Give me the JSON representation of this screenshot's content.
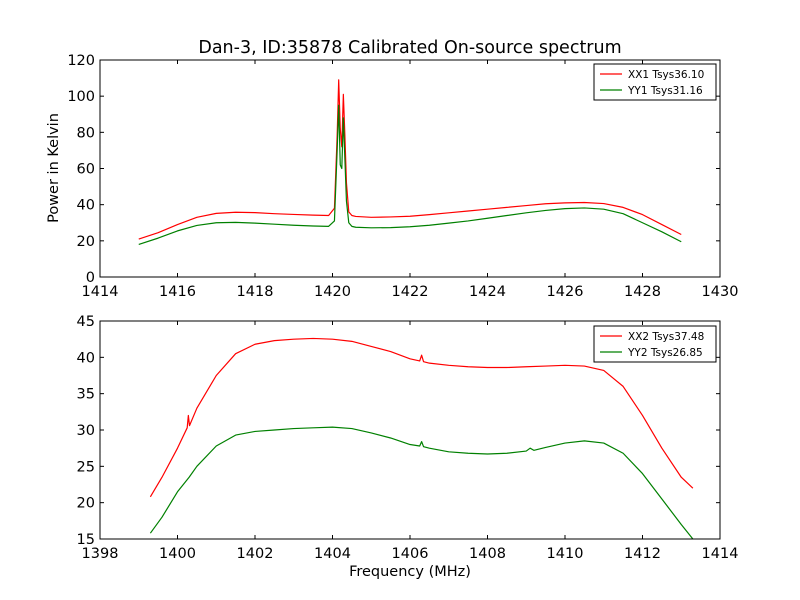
{
  "title": "Dan-3, ID:35878 Calibrated On-source spectrum",
  "colors": {
    "red": "#ff0000",
    "green": "#008000",
    "axis": "#000000",
    "background": "#ffffff"
  },
  "chart_data": [
    {
      "type": "line",
      "title": "Dan-3, ID:35878 Calibrated On-source spectrum",
      "xlabel": "",
      "ylabel": "Power in Kelvin",
      "xlim": [
        1414,
        1430
      ],
      "ylim": [
        0,
        120
      ],
      "xticks": [
        1414,
        1416,
        1418,
        1420,
        1422,
        1424,
        1426,
        1428,
        1430
      ],
      "yticks": [
        0,
        20,
        40,
        60,
        80,
        100,
        120
      ],
      "grid": false,
      "legend_position": "top-right",
      "series": [
        {
          "name": "XX1 Tsys36.10",
          "color": "#ff0000",
          "x": [
            1415.0,
            1415.5,
            1416.0,
            1416.5,
            1417.0,
            1417.5,
            1418.0,
            1418.5,
            1419.0,
            1419.5,
            1419.9,
            1420.05,
            1420.12,
            1420.16,
            1420.2,
            1420.24,
            1420.28,
            1420.32,
            1420.36,
            1420.42,
            1420.5,
            1420.6,
            1421.0,
            1421.5,
            1422.0,
            1422.5,
            1423.0,
            1423.5,
            1424.0,
            1424.5,
            1425.0,
            1425.5,
            1426.0,
            1426.5,
            1427.0,
            1427.5,
            1428.0,
            1428.5,
            1429.0
          ],
          "values": [
            21.0,
            24.5,
            29.0,
            33.0,
            35.2,
            35.8,
            35.6,
            35.0,
            34.6,
            34.2,
            34.0,
            38.0,
            78.0,
            109.0,
            82.0,
            72.0,
            101.0,
            78.0,
            52.0,
            36.0,
            34.0,
            33.5,
            33.0,
            33.2,
            33.6,
            34.5,
            35.5,
            36.5,
            37.5,
            38.5,
            39.5,
            40.5,
            41.0,
            41.2,
            40.6,
            38.5,
            34.5,
            29.0,
            23.5
          ]
        },
        {
          "name": "YY1 Tsys31.16",
          "color": "#008000",
          "x": [
            1415.0,
            1415.5,
            1416.0,
            1416.5,
            1417.0,
            1417.5,
            1418.0,
            1418.5,
            1419.0,
            1419.5,
            1419.9,
            1420.05,
            1420.12,
            1420.16,
            1420.2,
            1420.24,
            1420.28,
            1420.32,
            1420.36,
            1420.42,
            1420.5,
            1420.6,
            1421.0,
            1421.5,
            1422.0,
            1422.5,
            1423.0,
            1423.5,
            1424.0,
            1424.5,
            1425.0,
            1425.5,
            1426.0,
            1426.5,
            1427.0,
            1427.5,
            1428.0,
            1428.5,
            1429.0
          ],
          "values": [
            18.0,
            21.5,
            25.5,
            28.5,
            30.0,
            30.2,
            29.8,
            29.2,
            28.6,
            28.2,
            28.0,
            31.0,
            70.0,
            95.0,
            62.0,
            60.0,
            88.0,
            65.0,
            42.0,
            30.0,
            28.0,
            27.5,
            27.2,
            27.3,
            27.8,
            28.6,
            29.8,
            31.0,
            32.5,
            34.0,
            35.5,
            36.8,
            37.8,
            38.2,
            37.5,
            35.0,
            30.0,
            25.0,
            19.5
          ]
        }
      ]
    },
    {
      "type": "line",
      "title": "",
      "xlabel": "Frequency (MHz)",
      "ylabel": "",
      "xlim": [
        1398,
        1414
      ],
      "ylim": [
        15,
        45
      ],
      "xticks": [
        1398,
        1400,
        1402,
        1404,
        1406,
        1408,
        1410,
        1412,
        1414
      ],
      "yticks": [
        15,
        20,
        25,
        30,
        35,
        40,
        45
      ],
      "grid": false,
      "legend_position": "top-right",
      "series": [
        {
          "name": "XX2 Tsys37.48",
          "color": "#ff0000",
          "x": [
            1399.3,
            1399.6,
            1400.0,
            1400.25,
            1400.28,
            1400.31,
            1400.5,
            1401.0,
            1401.5,
            1402.0,
            1402.5,
            1403.0,
            1403.5,
            1404.0,
            1404.5,
            1405.0,
            1405.5,
            1406.0,
            1406.25,
            1406.3,
            1406.35,
            1406.5,
            1407.0,
            1407.5,
            1408.0,
            1408.5,
            1409.0,
            1409.5,
            1410.0,
            1410.5,
            1411.0,
            1411.5,
            1412.0,
            1412.5,
            1413.0,
            1413.3
          ],
          "values": [
            20.8,
            23.5,
            27.5,
            30.3,
            32.0,
            30.6,
            33.0,
            37.5,
            40.5,
            41.8,
            42.3,
            42.5,
            42.6,
            42.5,
            42.2,
            41.5,
            40.8,
            39.8,
            39.5,
            40.3,
            39.4,
            39.2,
            38.9,
            38.7,
            38.6,
            38.6,
            38.7,
            38.8,
            38.9,
            38.8,
            38.2,
            36.0,
            32.0,
            27.5,
            23.5,
            22.0
          ]
        },
        {
          "name": "YY2 Tsys26.85",
          "color": "#008000",
          "x": [
            1399.3,
            1399.6,
            1400.0,
            1400.3,
            1400.5,
            1401.0,
            1401.5,
            1402.0,
            1402.5,
            1403.0,
            1403.5,
            1404.0,
            1404.5,
            1405.0,
            1405.5,
            1406.0,
            1406.25,
            1406.3,
            1406.35,
            1406.5,
            1407.0,
            1407.5,
            1408.0,
            1408.5,
            1409.0,
            1409.1,
            1409.2,
            1409.5,
            1410.0,
            1410.5,
            1411.0,
            1411.5,
            1412.0,
            1412.5,
            1413.0,
            1413.3
          ],
          "values": [
            15.8,
            18.0,
            21.5,
            23.5,
            25.0,
            27.8,
            29.3,
            29.8,
            30.0,
            30.2,
            30.3,
            30.4,
            30.2,
            29.6,
            28.9,
            28.0,
            27.8,
            28.4,
            27.7,
            27.5,
            27.0,
            26.8,
            26.7,
            26.8,
            27.1,
            27.5,
            27.2,
            27.6,
            28.2,
            28.5,
            28.2,
            26.8,
            24.0,
            20.5,
            17.0,
            15.0
          ]
        }
      ]
    }
  ]
}
